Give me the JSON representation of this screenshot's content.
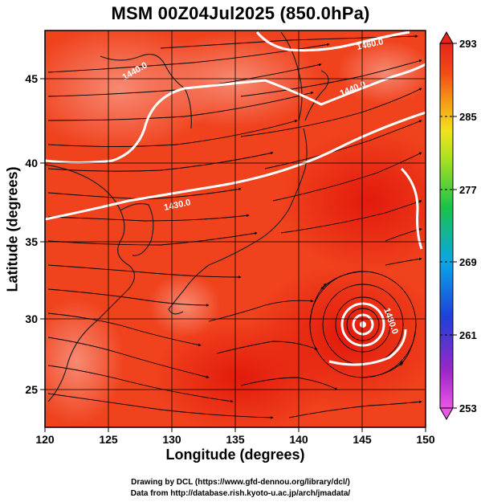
{
  "title": "MSM 00Z04Jul2025 (850.0hPa)",
  "x_axis_label": "Longitude (degrees)",
  "y_axis_label": "Latitude  (degrees)",
  "x_ticks": [
    "120",
    "125",
    "130",
    "135",
    "140",
    "145",
    "150"
  ],
  "y_ticks": [
    "25",
    "30",
    "35",
    "40",
    "45"
  ],
  "colorbar_labels": [
    "293",
    "285",
    "277",
    "269",
    "261",
    "253"
  ],
  "contour_labels": [
    "1440.0",
    "1440.0",
    "1430.0",
    "1460.0",
    "1480.0"
  ],
  "footer": {
    "line1": "Drawing by DCL (https://www.gfd-dennou.org/library/dcl/)",
    "line2": "Data from http://database.rish.kyoto-u.ac.jp/arch/jmadata/"
  },
  "colors": {
    "field_main": "#f0421d",
    "field_warm": "#e8250f",
    "field_cool": "#f26a50",
    "contour": "#ffffff",
    "streamline": "#000000"
  },
  "colorbar_gradient": [
    "#ec55e6",
    "#9c27c8",
    "#1e40d8",
    "#0aa6e8",
    "#19c24a",
    "#a6e021",
    "#f2e21c",
    "#f59a17",
    "#f24a15",
    "#e8241a"
  ]
}
